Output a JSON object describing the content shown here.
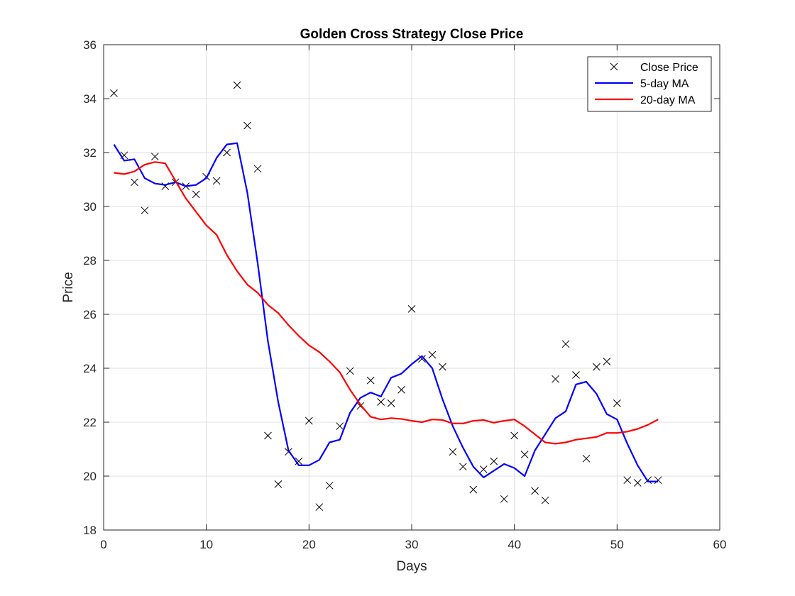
{
  "chart_data": {
    "type": "line",
    "title": "Golden Cross Strategy Close Price",
    "xlabel": "Days",
    "ylabel": "Price",
    "xlim": [
      0,
      60
    ],
    "ylim": [
      18,
      36
    ],
    "xticks": [
      0,
      10,
      20,
      30,
      40,
      50,
      60
    ],
    "yticks": [
      18,
      20,
      22,
      24,
      26,
      28,
      30,
      32,
      34,
      36
    ],
    "grid": true,
    "legend_position": "top-right",
    "x": [
      1,
      2,
      3,
      4,
      5,
      6,
      7,
      8,
      9,
      10,
      11,
      12,
      13,
      14,
      15,
      16,
      17,
      18,
      19,
      20,
      21,
      22,
      23,
      24,
      25,
      26,
      27,
      28,
      29,
      30,
      31,
      32,
      33,
      34,
      35,
      36,
      37,
      38,
      39,
      40,
      41,
      42,
      43,
      44,
      45,
      46,
      47,
      48,
      49,
      50,
      51,
      52,
      53,
      54
    ],
    "series": [
      {
        "name": "Close Price",
        "style": "marker-x",
        "color": "#000000",
        "values": [
          34.2,
          31.9,
          30.9,
          29.85,
          31.85,
          30.75,
          30.9,
          30.75,
          30.45,
          31.1,
          30.95,
          32.0,
          34.5,
          33.0,
          31.4,
          21.5,
          19.7,
          20.9,
          20.55,
          22.05,
          18.85,
          19.65,
          21.85,
          23.9,
          22.6,
          23.55,
          22.75,
          22.7,
          23.2,
          26.2,
          24.35,
          24.5,
          24.05,
          20.9,
          20.35,
          19.5,
          20.25,
          20.55,
          19.15,
          21.5,
          20.8,
          19.45,
          19.1,
          23.6,
          24.9,
          23.75,
          20.65,
          24.05,
          24.25,
          22.7,
          19.85,
          19.75,
          19.85,
          19.85
        ]
      },
      {
        "name": "5-day MA",
        "style": "line",
        "color": "#0000ff",
        "values": [
          32.3,
          31.7,
          31.75,
          31.05,
          30.85,
          30.8,
          30.9,
          30.75,
          30.8,
          31.05,
          31.8,
          32.3,
          32.35,
          30.5,
          27.9,
          25.0,
          22.75,
          20.95,
          20.4,
          20.4,
          20.6,
          21.25,
          21.35,
          22.35,
          22.9,
          23.1,
          22.95,
          23.65,
          23.8,
          24.15,
          24.45,
          24.0,
          22.85,
          21.85,
          21.05,
          20.35,
          19.95,
          20.2,
          20.45,
          20.3,
          20.0,
          20.95,
          21.55,
          22.15,
          22.4,
          23.4,
          23.5,
          23.05,
          22.3,
          22.1,
          21.2,
          20.4,
          19.8,
          19.8
        ]
      },
      {
        "name": "20-day MA",
        "style": "line",
        "color": "#ff0000",
        "values": [
          31.25,
          31.2,
          31.3,
          31.55,
          31.65,
          31.6,
          30.95,
          30.3,
          29.8,
          29.3,
          28.95,
          28.2,
          27.6,
          27.1,
          26.8,
          26.35,
          26.05,
          25.6,
          25.2,
          24.85,
          24.6,
          24.25,
          23.85,
          23.2,
          22.65,
          22.2,
          22.1,
          22.15,
          22.12,
          22.05,
          22.0,
          22.1,
          22.08,
          21.95,
          21.95,
          22.05,
          22.08,
          21.98,
          22.05,
          22.1,
          21.85,
          21.55,
          21.25,
          21.2,
          21.25,
          21.35,
          21.4,
          21.45,
          21.6,
          21.6,
          21.65,
          21.75,
          21.9,
          22.1
        ]
      }
    ]
  }
}
